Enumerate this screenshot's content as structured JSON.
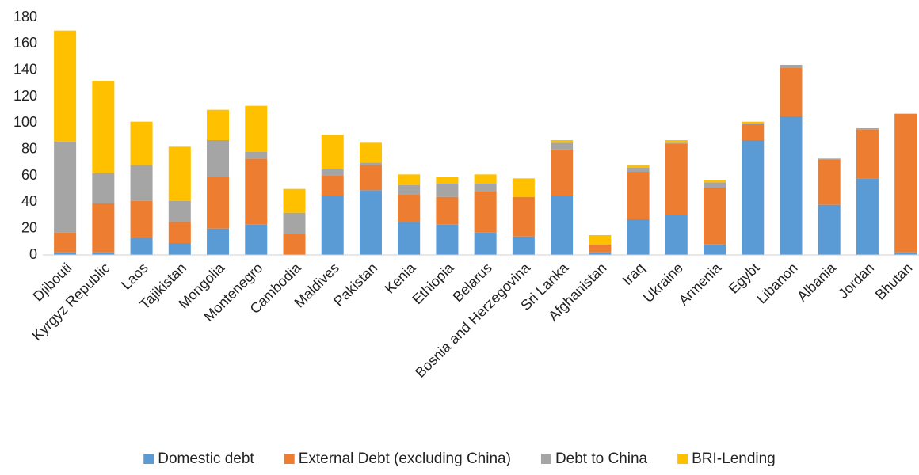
{
  "chart_data": {
    "type": "stacked_bar",
    "categories": [
      "Djibouti",
      "Kyrgyz Republic",
      "Laos",
      "Tajikistan",
      "Mongolia",
      "Montenegro",
      "Cambodia",
      "Maldives",
      "Pakistan",
      "Kenia",
      "Ethiopia",
      "Belarus",
      "Bosnia and Herzegovina",
      "Sri Lanka",
      "Afghanistan",
      "Iraq",
      "Ukraine",
      "Armenia",
      "Egybt",
      "Libanon",
      "Albania",
      "Jordan",
      "Bhutan"
    ],
    "series": [
      {
        "name": "Domestic debt",
        "color": "#5b9bd5",
        "values": [
          2,
          2,
          13,
          9,
          20,
          23,
          0,
          45,
          49,
          25,
          23,
          17,
          14,
          45,
          2,
          27,
          30,
          8,
          87,
          105,
          38,
          58,
          2
        ]
      },
      {
        "name": "External Debt (excluding China)",
        "color": "#ed7d31",
        "values": [
          15,
          37,
          28,
          16,
          39,
          50,
          16,
          15,
          19,
          21,
          21,
          31,
          30,
          35,
          6,
          36,
          54,
          43,
          12,
          37,
          34,
          37,
          105
        ]
      },
      {
        "name": "Debt to China",
        "color": "#a5a5a5",
        "values": [
          69,
          23,
          27,
          16,
          28,
          5,
          16,
          5,
          2,
          7,
          10,
          6,
          0,
          5,
          0,
          3,
          1,
          4,
          1,
          2,
          1,
          1,
          0
        ]
      },
      {
        "name": "BRI-Lending",
        "color": "#ffc000",
        "values": [
          84,
          70,
          33,
          41,
          23,
          35,
          18,
          26,
          15,
          8,
          5,
          7,
          14,
          2,
          7,
          2,
          2,
          2,
          1,
          0,
          0,
          0,
          0
        ]
      }
    ],
    "ylim": [
      0,
      180
    ],
    "yticks": [
      0,
      20,
      40,
      60,
      80,
      100,
      120,
      140,
      160,
      180
    ],
    "legend": "bottom"
  }
}
